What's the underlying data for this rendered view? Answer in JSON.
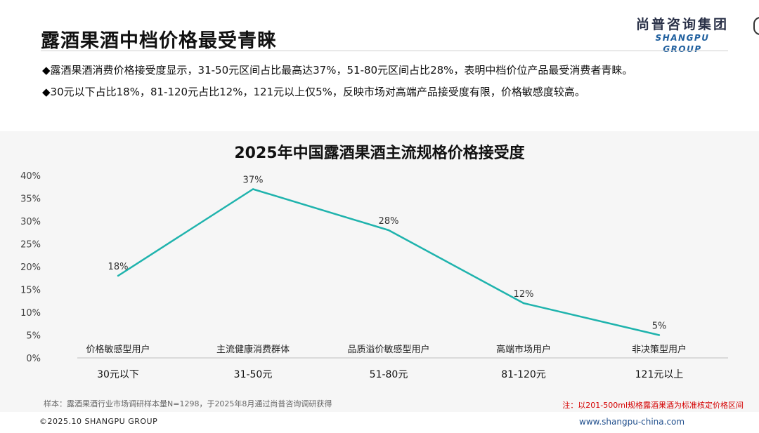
{
  "header": {
    "title": "露酒果酒中档价格最受青睐",
    "brand_cn": "尚普咨询集团",
    "brand_en": "SHANGPU GROUP"
  },
  "bullets": [
    "露酒果酒消费价格接受度显示，31-50元区间占比最高达37%，51-80元区间占比28%，表明中档价位产品最受消费者青睐。",
    "30元以下占比18%，81-120元占比12%，121元以上仅5%，反映市场对高端产品接受度有限，价格敏感度较高。"
  ],
  "bullet_mark": "◆",
  "chart_data": {
    "type": "line",
    "title": "2025年中国露酒果酒主流规格价格接受度",
    "categories": [
      "30元以下",
      "31-50元",
      "51-80元",
      "81-120元",
      "121元以上"
    ],
    "segments": [
      "价格敏感型用户",
      "主流健康消费群体",
      "品质溢价敏感型用户",
      "高端市场用户",
      "非决策型用户"
    ],
    "values": [
      18,
      37,
      28,
      12,
      5
    ],
    "data_labels": [
      "18%",
      "37%",
      "28%",
      "12%",
      "5%"
    ],
    "ylim": [
      0,
      40
    ],
    "yticks": [
      0,
      5,
      10,
      15,
      20,
      25,
      30,
      35,
      40
    ],
    "ytick_labels": [
      "0%",
      "5%",
      "10%",
      "15%",
      "20%",
      "25%",
      "30%",
      "35%",
      "40%"
    ],
    "grid": false,
    "line_color": "#1fb3ad",
    "sample_note": "样本：露酒果酒行业市场调研样本量N=1298，于2025年8月通过尚普咨询调研获得",
    "side_note": "注：以201-500ml规格露酒果酒为标准核定价格区间",
    "side_note_color": "#d40000"
  },
  "footer": {
    "copyright": "©2025.10 SHANGPU GROUP",
    "website": "www.shangpu-china.com"
  }
}
